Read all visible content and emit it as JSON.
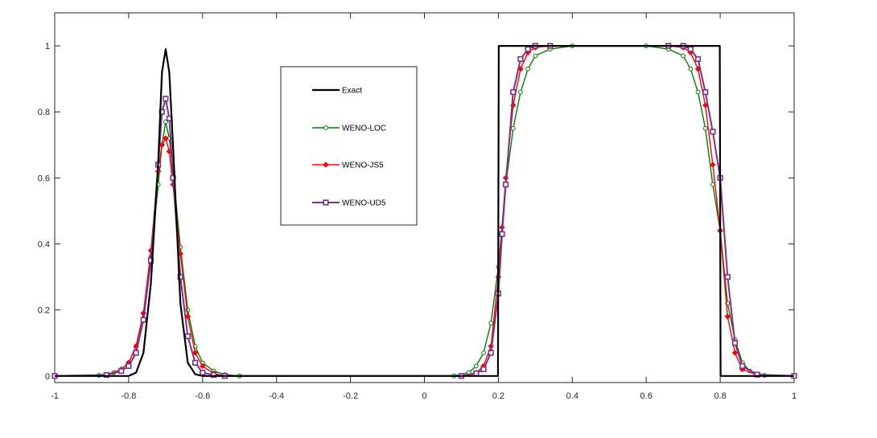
{
  "chart_data": {
    "type": "line",
    "title": "",
    "xlabel": "",
    "ylabel": "",
    "xlim": [
      -1,
      1
    ],
    "ylim": [
      -0.02,
      1.1
    ],
    "xticks": [
      -1,
      -0.8,
      -0.6,
      -0.4,
      -0.2,
      0,
      0.2,
      0.4,
      0.6,
      0.8,
      1
    ],
    "xtick_labels": [
      "-1",
      "-0.8",
      "-0.6",
      "-0.4",
      "-0.2",
      "0",
      "0.2",
      "0.4",
      "0.6",
      "0.8",
      "1"
    ],
    "yticks": [
      0,
      0.2,
      0.4,
      0.6,
      0.8,
      1
    ],
    "ytick_labels": [
      "0",
      "0.2",
      "0.4",
      "0.6",
      "0.8",
      "1"
    ],
    "grid": false,
    "legend_position": "upper-center",
    "series": [
      {
        "name": "Exact",
        "color": "#000000",
        "marker": "none",
        "x": [
          -1,
          -0.8,
          -0.78,
          -0.76,
          -0.74,
          -0.72,
          -0.71,
          -0.7,
          -0.69,
          -0.68,
          -0.66,
          -0.64,
          -0.62,
          -0.6,
          0.199,
          0.201,
          0.799,
          0.801,
          1
        ],
        "y": [
          0,
          0,
          0.01,
          0.07,
          0.28,
          0.65,
          0.92,
          0.99,
          0.92,
          0.7,
          0.22,
          0.04,
          0.005,
          0,
          0,
          1,
          1,
          0,
          0
        ]
      },
      {
        "name": "WENO-LOC",
        "color": "#008000",
        "marker": "circle",
        "x": [
          -1,
          -0.88,
          -0.84,
          -0.82,
          -0.8,
          -0.78,
          -0.76,
          -0.74,
          -0.72,
          -0.71,
          -0.7,
          -0.69,
          -0.68,
          -0.66,
          -0.64,
          -0.62,
          -0.6,
          -0.57,
          -0.54,
          -0.5,
          0.08,
          0.12,
          0.14,
          0.16,
          0.18,
          0.2,
          0.22,
          0.24,
          0.26,
          0.28,
          0.3,
          0.34,
          0.4,
          0.6,
          0.66,
          0.7,
          0.72,
          0.74,
          0.76,
          0.78,
          0.8,
          0.82,
          0.84,
          0.86,
          0.88,
          0.92,
          1
        ],
        "y": [
          0,
          0.002,
          0.01,
          0.02,
          0.04,
          0.09,
          0.19,
          0.36,
          0.58,
          0.7,
          0.77,
          0.72,
          0.62,
          0.39,
          0.2,
          0.09,
          0.04,
          0.015,
          0.004,
          0,
          0,
          0.01,
          0.03,
          0.07,
          0.16,
          0.33,
          0.58,
          0.75,
          0.86,
          0.93,
          0.97,
          0.99,
          1,
          1,
          0.99,
          0.97,
          0.93,
          0.86,
          0.75,
          0.58,
          0.44,
          0.22,
          0.11,
          0.04,
          0.015,
          0.002,
          0
        ]
      },
      {
        "name": "WENO-JS5",
        "color": "#ff0000",
        "marker": "diamond",
        "x": [
          -1,
          -0.86,
          -0.82,
          -0.8,
          -0.78,
          -0.76,
          -0.74,
          -0.72,
          -0.71,
          -0.7,
          -0.69,
          -0.68,
          -0.66,
          -0.64,
          -0.62,
          -0.6,
          -0.57,
          -0.54,
          0.1,
          0.14,
          0.16,
          0.18,
          0.2,
          0.21,
          0.22,
          0.24,
          0.26,
          0.28,
          0.3,
          0.34,
          0.66,
          0.7,
          0.72,
          0.74,
          0.76,
          0.78,
          0.8,
          0.82,
          0.84,
          0.86,
          0.9,
          1
        ],
        "y": [
          0,
          0.003,
          0.02,
          0.04,
          0.09,
          0.19,
          0.38,
          0.62,
          0.7,
          0.72,
          0.68,
          0.58,
          0.37,
          0.18,
          0.07,
          0.03,
          0.008,
          0,
          0,
          0.01,
          0.03,
          0.09,
          0.3,
          0.45,
          0.6,
          0.82,
          0.93,
          0.98,
          0.995,
          1,
          1,
          0.995,
          0.98,
          0.93,
          0.82,
          0.64,
          0.44,
          0.18,
          0.07,
          0.02,
          0.003,
          0
        ]
      },
      {
        "name": "WENO-UD5",
        "color": "#7e2f8e",
        "marker": "square",
        "x": [
          -1,
          -0.86,
          -0.82,
          -0.8,
          -0.78,
          -0.76,
          -0.74,
          -0.72,
          -0.71,
          -0.7,
          -0.69,
          -0.68,
          -0.66,
          -0.64,
          -0.62,
          -0.6,
          -0.57,
          -0.54,
          0.1,
          0.14,
          0.16,
          0.18,
          0.2,
          0.21,
          0.22,
          0.24,
          0.26,
          0.28,
          0.3,
          0.34,
          0.66,
          0.7,
          0.72,
          0.74,
          0.76,
          0.78,
          0.8,
          0.82,
          0.84,
          0.86,
          0.9,
          1
        ],
        "y": [
          0,
          0.003,
          0.015,
          0.03,
          0.07,
          0.17,
          0.35,
          0.64,
          0.8,
          0.84,
          0.78,
          0.6,
          0.3,
          0.12,
          0.04,
          0.01,
          0.003,
          0,
          0,
          0.008,
          0.02,
          0.07,
          0.25,
          0.43,
          0.58,
          0.86,
          0.96,
          0.99,
          1,
          1,
          1,
          1,
          0.99,
          0.96,
          0.86,
          0.74,
          0.6,
          0.3,
          0.1,
          0.03,
          0.004,
          0
        ]
      }
    ]
  }
}
